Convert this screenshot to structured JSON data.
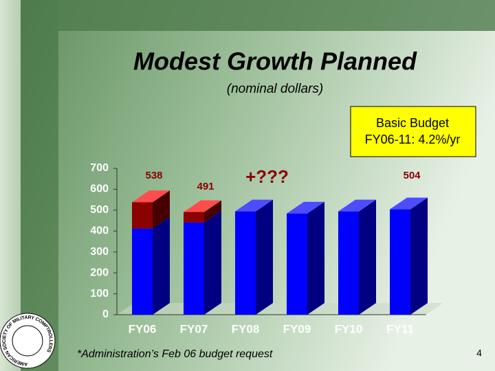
{
  "slide": {
    "title": "Modest Growth Planned",
    "subtitle": "(nominal dollars)",
    "callout": [
      "Basic Budget",
      "FY06-11:  4.2%/yr"
    ],
    "footnote": "*Administration’s Feb 06 budget request",
    "page_number": "4",
    "logo_text": "AMERICAN SOCIETY OF MILITARY COMPTROLLERS"
  },
  "chart_data": {
    "type": "bar",
    "stacked": true,
    "categories": [
      "FY06",
      "FY07",
      "FY08",
      "FY09",
      "FY10",
      "FY11"
    ],
    "series": [
      {
        "color": "#0000ff",
        "values": [
          412,
          441,
          494,
          484,
          494,
          504
        ]
      },
      {
        "color": "#8b0000",
        "values": [
          126,
          50,
          0,
          0,
          0,
          0
        ]
      }
    ],
    "total_labels": [
      538,
      491,
      null,
      null,
      null,
      504
    ],
    "annotation": "+???",
    "ylim": [
      0,
      700
    ],
    "yticks": [
      0,
      100,
      200,
      300,
      400,
      500,
      600,
      700
    ]
  }
}
